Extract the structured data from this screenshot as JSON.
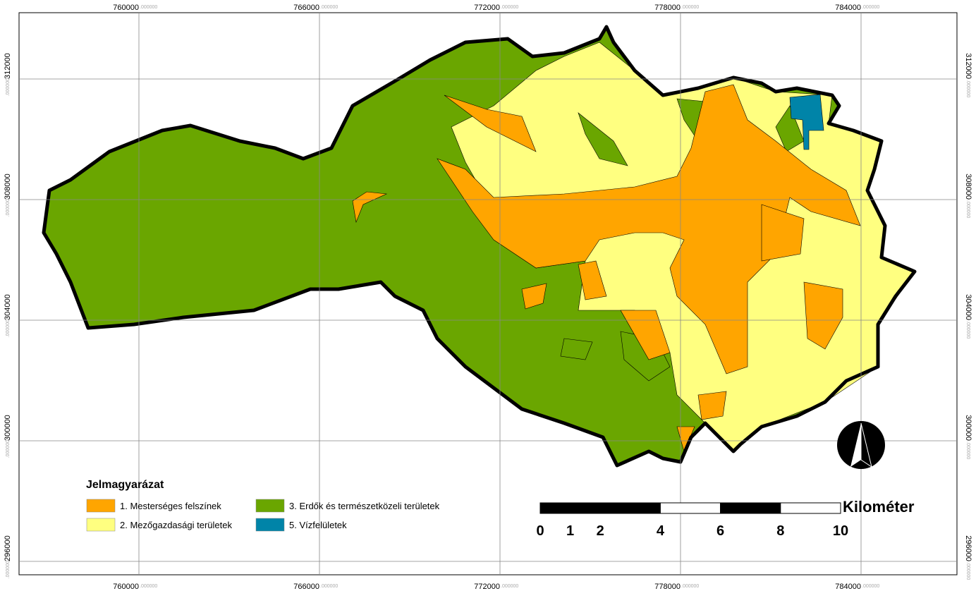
{
  "grid": {
    "x": [
      760000,
      766000,
      772000,
      778000,
      784000
    ],
    "y": [
      312000,
      308000,
      304000,
      300000,
      296000
    ],
    "suffix": ".000000"
  },
  "legend": {
    "title": "Jelmagyarázat",
    "items": [
      {
        "label": "1. Mesterséges felszínek",
        "color": "#ffa500"
      },
      {
        "label": "2. Mezőgazdasági területek",
        "color": "#ffff80"
      },
      {
        "label": "3. Erdők és természetközeli területek",
        "color": "#6aa600"
      },
      {
        "label": "5. Vízfelületek",
        "color": "#0084a8"
      }
    ]
  },
  "scale": {
    "ticks": [
      0,
      1,
      2,
      4,
      6,
      8,
      10
    ],
    "unit": "Kilométer"
  }
}
